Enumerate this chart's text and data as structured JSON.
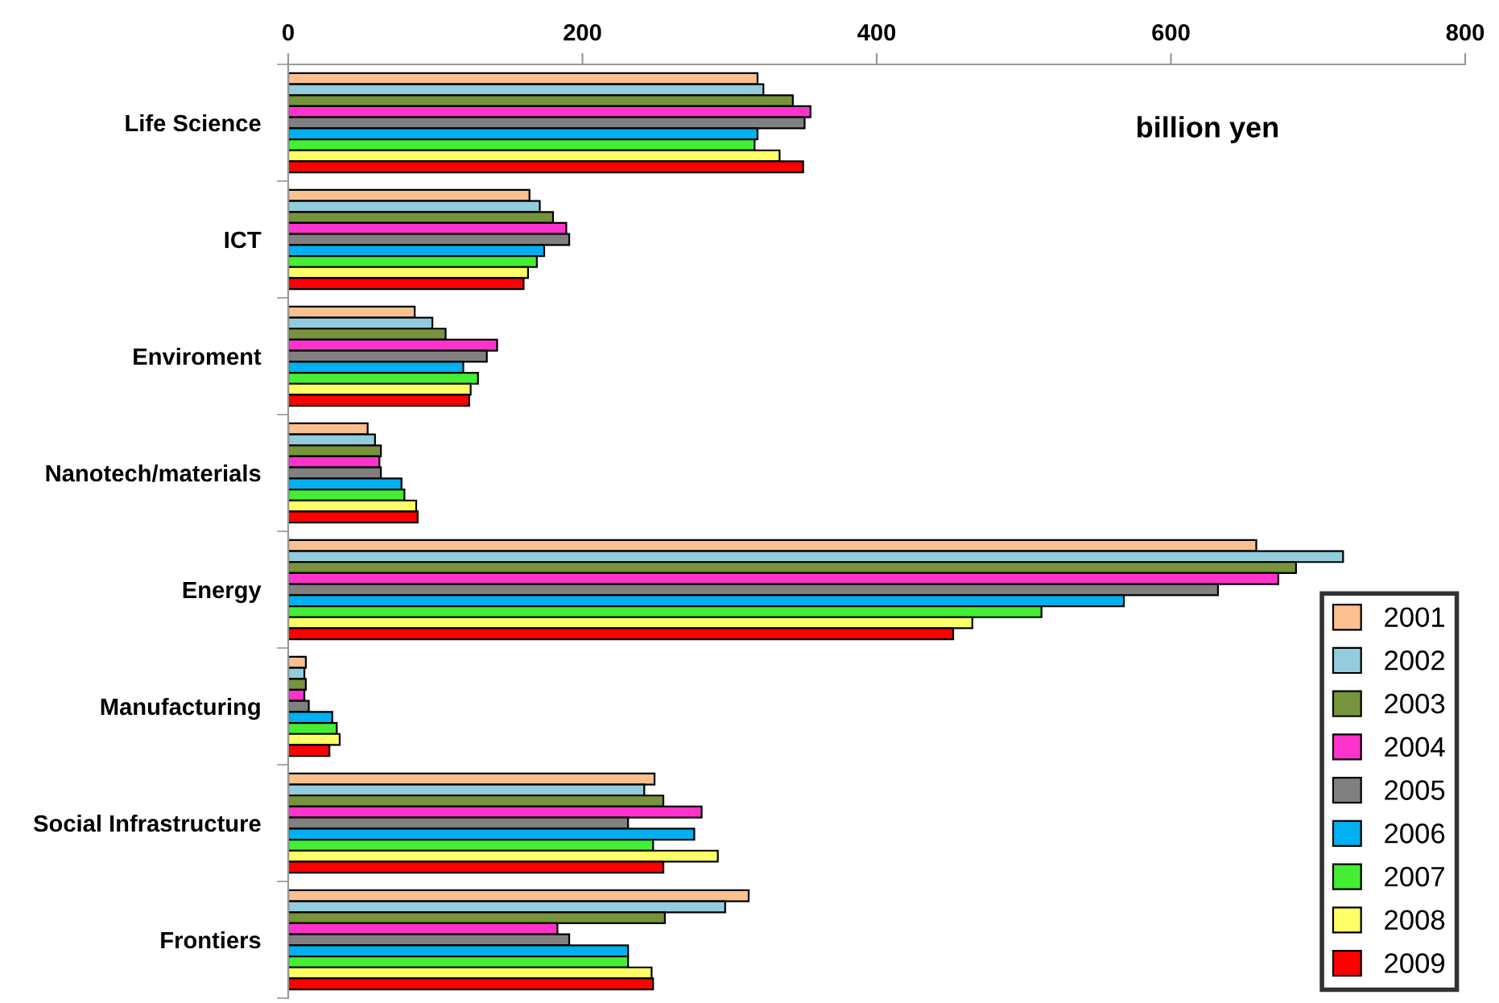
{
  "chart_data": {
    "type": "bar",
    "orientation": "horizontal",
    "categories": [
      "Life Science",
      "ICT",
      "Enviroment",
      "Nanotech/materials",
      "Energy",
      "Manufacturing",
      "Social Infrastructure",
      "Frontiers"
    ],
    "series": [
      {
        "name": "2001",
        "color": "#fac090",
        "values": [
          319,
          164,
          86,
          54,
          658,
          12,
          249,
          313
        ]
      },
      {
        "name": "2002",
        "color": "#93cddd",
        "values": [
          323,
          171,
          98,
          59,
          717,
          11,
          242,
          297
        ]
      },
      {
        "name": "2003",
        "color": "#77933c",
        "values": [
          343,
          180,
          107,
          63,
          685,
          12,
          255,
          256
        ]
      },
      {
        "name": "2004",
        "color": "#ff33cc",
        "values": [
          355,
          189,
          142,
          62,
          673,
          11,
          281,
          183
        ]
      },
      {
        "name": "2005",
        "color": "#808080",
        "values": [
          351,
          191,
          135,
          63,
          632,
          14,
          231,
          191
        ]
      },
      {
        "name": "2006",
        "color": "#00b0f0",
        "values": [
          319,
          174,
          119,
          77,
          568,
          30,
          276,
          231
        ]
      },
      {
        "name": "2007",
        "color": "#44ee33",
        "values": [
          317,
          169,
          129,
          79,
          512,
          33,
          248,
          231
        ]
      },
      {
        "name": "2008",
        "color": "#ffff66",
        "values": [
          334,
          163,
          124,
          87,
          465,
          35,
          292,
          247
        ]
      },
      {
        "name": "2009",
        "color": "#ff0000",
        "values": [
          350,
          160,
          123,
          88,
          452,
          28,
          255,
          248
        ]
      }
    ],
    "xlim": [
      0,
      800
    ],
    "xticks": [
      0,
      200,
      400,
      600,
      800
    ],
    "annotations": [
      "billion yen"
    ],
    "legend": "bottom right",
    "grid": false
  }
}
